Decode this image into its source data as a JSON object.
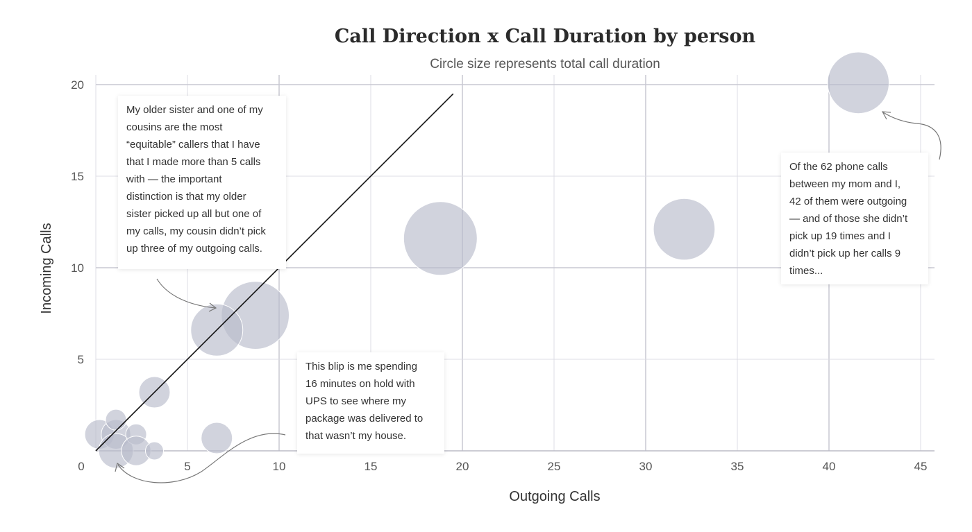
{
  "chart_data": {
    "type": "scatter",
    "title": "Call Direction x Call Duration by person",
    "subtitle": "Circle size represents total call duration",
    "xlabel": "Outgoing Calls",
    "ylabel": "Incoming Calls",
    "xlim": [
      0,
      45
    ],
    "ylim": [
      0,
      20
    ],
    "xticks": [
      "0",
      "5",
      "10",
      "15",
      "20",
      "25",
      "30",
      "35",
      "40",
      "45"
    ],
    "yticks": [
      "5",
      "10",
      "15",
      "20"
    ],
    "grid": true,
    "reference_line": {
      "from": [
        0,
        0
      ],
      "to": [
        19.5,
        19.5
      ]
    },
    "points": [
      {
        "x": 41.6,
        "y": 20.1,
        "size": 70
      },
      {
        "x": 18.8,
        "y": 11.6,
        "size": 100
      },
      {
        "x": 32.1,
        "y": 12.1,
        "size": 70
      },
      {
        "x": 8.7,
        "y": 7.4,
        "size": 85
      },
      {
        "x": 6.6,
        "y": 6.6,
        "size": 50
      },
      {
        "x": 3.2,
        "y": 3.2,
        "size": 18
      },
      {
        "x": 6.6,
        "y": 0.7,
        "size": 18
      },
      {
        "x": 0.2,
        "y": 0.9,
        "size": 16
      },
      {
        "x": 1.1,
        "y": 0.9,
        "size": 16
      },
      {
        "x": 1.1,
        "y": 1.7,
        "size": 8
      },
      {
        "x": 1.1,
        "y": 0.0,
        "size": 22
      },
      {
        "x": 2.2,
        "y": 0.9,
        "size": 8
      },
      {
        "x": 2.2,
        "y": 0.0,
        "size": 16
      },
      {
        "x": 3.2,
        "y": 0.0,
        "size": 6
      }
    ],
    "annotations": {
      "sister": [
        "My older sister and one of my",
        "cousins are the most",
        "“equitable” callers that I have",
        "that I made more than 5 calls",
        "with — the important",
        "distinction is that my older",
        "sister picked up all but one of",
        "my calls, my cousin didn’t pick",
        "up three of my outgoing calls."
      ],
      "ups": [
        "This blip is me spending",
        "16 minutes on hold with",
        "UPS to see where my",
        "package was delivered to",
        "that wasn’t my house."
      ],
      "mom": [
        "Of the 62 phone calls",
        "between my mom and I,",
        "42 of them were outgoing",
        "— and of those she didn’t",
        "pick up 19 times and I",
        "didn’t pick up her calls 9",
        "times..."
      ]
    }
  }
}
